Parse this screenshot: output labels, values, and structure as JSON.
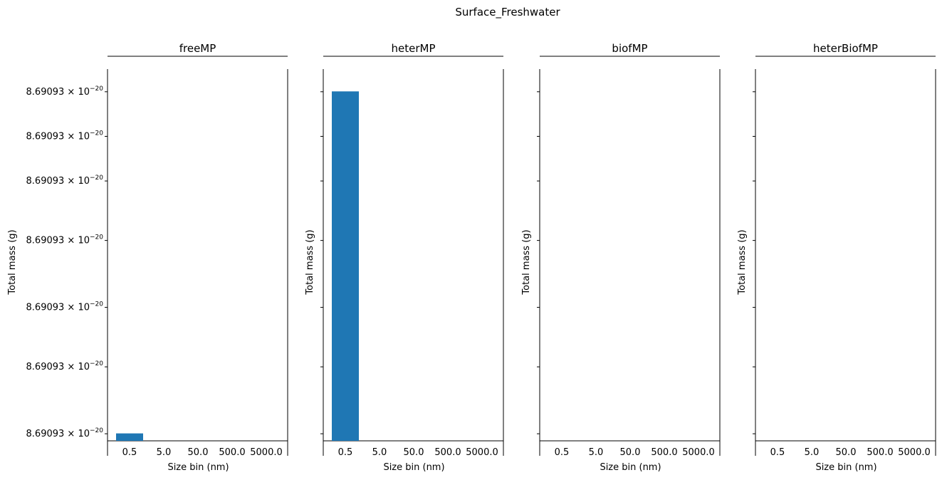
{
  "figure": {
    "suptitle": "Surface_Freshwater"
  },
  "chart_data": [
    {
      "type": "bar",
      "title": "freeMP",
      "xlabel": "Size bin (nm)",
      "ylabel": "Total mass (g)",
      "categories": [
        "0.5",
        "5.0",
        "50.0",
        "500.0",
        "5000.0"
      ],
      "values": [
        8.69093e-20,
        null,
        null,
        null,
        null
      ],
      "yscale": "log",
      "y_ticklabel_mantissa": "8.69093",
      "y_ticklabel_exponent": "−20",
      "y_ticklabels_visible": true,
      "bar_color": "#1f77b4",
      "bar_level": 0.02,
      "y_tick_levels": [
        0.02,
        0.2,
        0.36,
        0.54,
        0.7,
        0.82,
        0.94
      ]
    },
    {
      "type": "bar",
      "title": "heterMP",
      "xlabel": "Size bin (nm)",
      "ylabel": "Total mass (g)",
      "categories": [
        "0.5",
        "5.0",
        "50.0",
        "500.0",
        "5000.0"
      ],
      "values": [
        8.69093e-20,
        null,
        null,
        null,
        null
      ],
      "yscale": "log",
      "y_ticklabels_visible": false,
      "bar_color": "#1f77b4",
      "bar_level": 0.94,
      "y_tick_levels": [
        0.02,
        0.2,
        0.36,
        0.54,
        0.7,
        0.82,
        0.94
      ]
    },
    {
      "type": "bar",
      "title": "biofMP",
      "xlabel": "Size bin (nm)",
      "ylabel": "Total mass (g)",
      "categories": [
        "0.5",
        "5.0",
        "50.0",
        "500.0",
        "5000.0"
      ],
      "values": [
        null,
        null,
        null,
        null,
        null
      ],
      "yscale": "log",
      "y_ticklabels_visible": false,
      "bar_color": "#1f77b4",
      "bar_level": 0,
      "y_tick_levels": [
        0.02,
        0.2,
        0.36,
        0.54,
        0.7,
        0.82,
        0.94
      ]
    },
    {
      "type": "bar",
      "title": "heterBiofMP",
      "xlabel": "Size bin (nm)",
      "ylabel": "Total mass (g)",
      "categories": [
        "0.5",
        "5.0",
        "50.0",
        "500.0",
        "5000.0"
      ],
      "values": [
        null,
        null,
        null,
        null,
        null
      ],
      "yscale": "log",
      "y_ticklabels_visible": false,
      "bar_color": "#1f77b4",
      "bar_level": 0,
      "y_tick_levels": [
        0.02,
        0.2,
        0.36,
        0.54,
        0.7,
        0.82,
        0.94
      ]
    }
  ]
}
